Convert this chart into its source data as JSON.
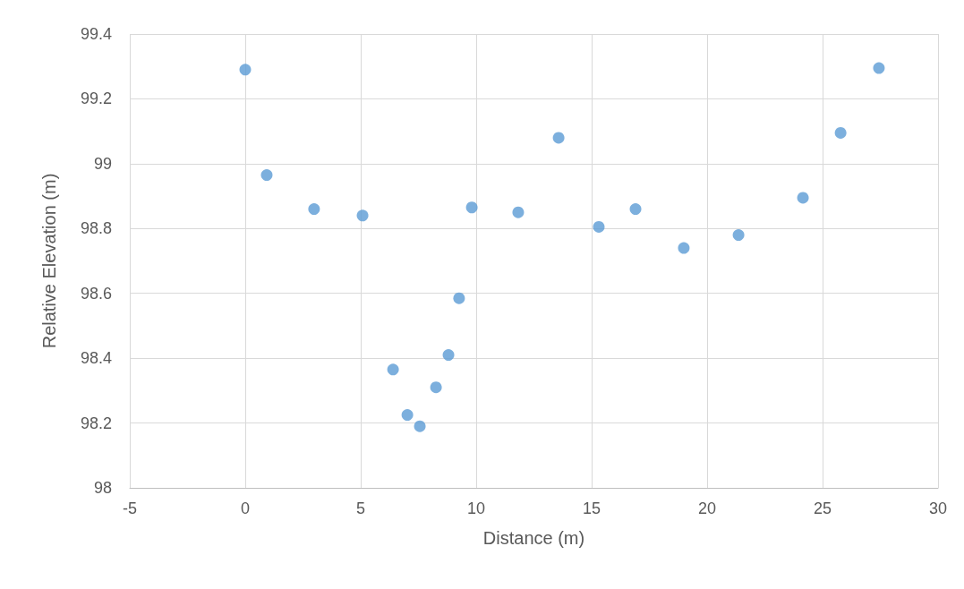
{
  "chart_data": {
    "type": "scatter",
    "xlabel": "Distance (m)",
    "ylabel": "Relative Elevation (m)",
    "x": [
      0,
      0.93,
      2.98,
      5.08,
      6.4,
      7.02,
      7.56,
      8.26,
      8.8,
      9.26,
      9.81,
      11.82,
      13.57,
      15.31,
      16.9,
      18.99,
      21.36,
      24.15,
      25.78,
      27.44
    ],
    "series": [
      {
        "color": "#5b9bd5",
        "values": [
          99.29,
          98.965,
          98.86,
          98.84,
          98.365,
          98.225,
          98.19,
          98.31,
          98.41,
          98.585,
          98.865,
          98.85,
          99.08,
          98.805,
          98.86,
          98.74,
          98.78,
          98.895,
          99.095,
          99.295
        ]
      }
    ],
    "xlim": [
      -5,
      30
    ],
    "xticks": [
      -5,
      0,
      5,
      10,
      15,
      20,
      25,
      30
    ],
    "ylim": [
      98,
      99.4
    ],
    "yticks": [
      98,
      98.2,
      98.4,
      98.6,
      98.8,
      99,
      99.2,
      99.4
    ],
    "grid": true,
    "marker": "circle"
  }
}
